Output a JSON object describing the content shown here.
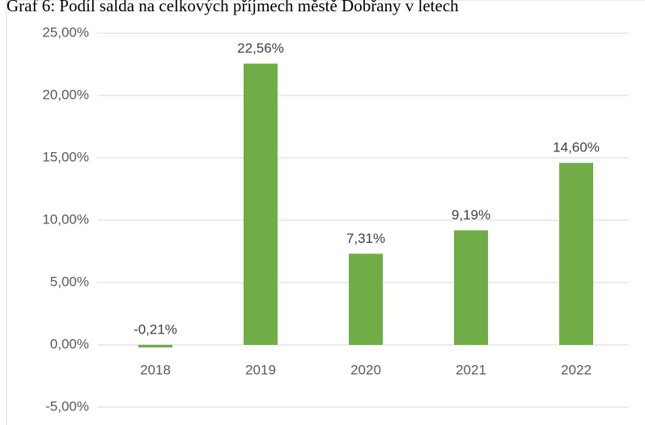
{
  "chart_data": {
    "type": "bar",
    "title": "Graf 6: Podíl salda na celkových příjmech městě Dobřany v letech",
    "categories": [
      "2018",
      "2019",
      "2020",
      "2021",
      "2022"
    ],
    "values": [
      -0.21,
      22.56,
      7.31,
      9.19,
      14.6
    ],
    "value_labels": [
      "-0,21%",
      "22,56%",
      "7,31%",
      "9,19%",
      "14,60%"
    ],
    "color": "#70ad47",
    "ylim": [
      -5,
      25
    ],
    "yticks": [
      {
        "value": -5,
        "label": "-5,00%"
      },
      {
        "value": 0,
        "label": "0,00%"
      },
      {
        "value": 5,
        "label": "5,00%"
      },
      {
        "value": 10,
        "label": "10,00%"
      },
      {
        "value": 15,
        "label": "15,00%"
      },
      {
        "value": 20,
        "label": "20,00%"
      },
      {
        "value": 25,
        "label": "25,00%"
      }
    ],
    "grid": true
  }
}
